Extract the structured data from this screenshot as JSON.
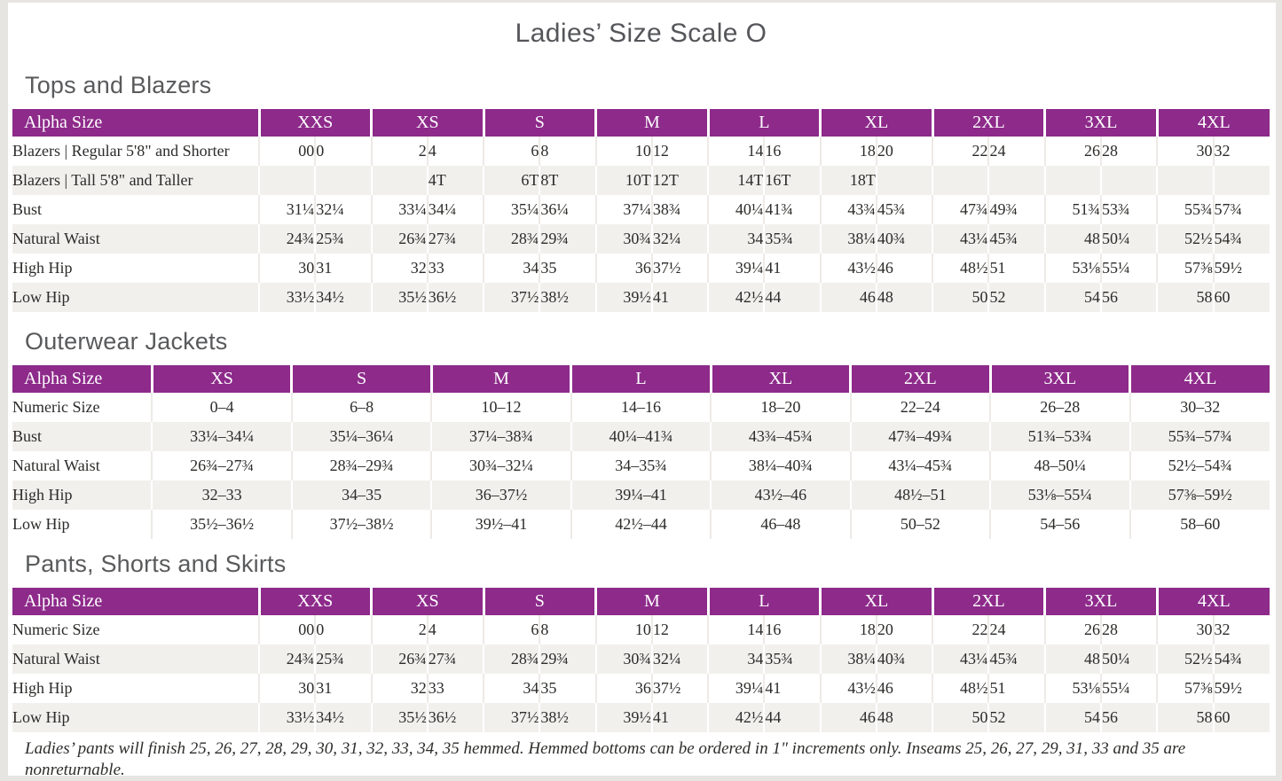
{
  "page": {
    "title": "Ladies’ Size Scale O",
    "footnote": "Ladies’ pants will finish 25, 26, 27, 28, 29, 30, 31, 32, 33, 34, 35 hemmed. Hemmed bottoms can be ordered in 1\" increments only. Inseams 25, 26, 27, 29, 31, 33 and 35 are nonreturnable."
  },
  "colors": {
    "accent_purple": "#8d2a8a",
    "row_stripe": "#f2f0ed"
  },
  "tables": [
    {
      "id": "tops-and-blazers",
      "section": "Tops and Blazers",
      "header_label": "Alpha Size",
      "split": true,
      "sizes": [
        "XXS",
        "XS",
        "S",
        "M",
        "L",
        "XL",
        "2XL",
        "3XL",
        "4XL"
      ],
      "rows": [
        {
          "label": "Blazers | Regular 5'8\" and Shorter",
          "values": [
            "00",
            "0",
            "2",
            "4",
            "6",
            "8",
            "10",
            "12",
            "14",
            "16",
            "18",
            "20",
            "22",
            "24",
            "26",
            "28",
            "30",
            "32"
          ]
        },
        {
          "label": "Blazers | Tall 5'8\" and Taller",
          "values": [
            "",
            "",
            "",
            "4T",
            "6T",
            "8T",
            "10T",
            "12T",
            "14T",
            "16T",
            "18T",
            "",
            "",
            "",
            "",
            "",
            "",
            ""
          ]
        },
        {
          "label": "Bust",
          "values": [
            "31¼",
            "32¼",
            "33¼",
            "34¼",
            "35¼",
            "36¼",
            "37¼",
            "38¾",
            "40¼",
            "41¾",
            "43¾",
            "45¾",
            "47¾",
            "49¾",
            "51¾",
            "53¾",
            "55¾",
            "57¾"
          ]
        },
        {
          "label": "Natural Waist",
          "values": [
            "24¾",
            "25¾",
            "26¾",
            "27¾",
            "28¾",
            "29¾",
            "30¾",
            "32¼",
            "34",
            "35¾",
            "38¼",
            "40¾",
            "43¼",
            "45¾",
            "48",
            "50¼",
            "52½",
            "54¾"
          ]
        },
        {
          "label": "High Hip",
          "values": [
            "30",
            "31",
            "32",
            "33",
            "34",
            "35",
            "36",
            "37½",
            "39¼",
            "41",
            "43½",
            "46",
            "48½",
            "51",
            "53⅛",
            "55¼",
            "57⅜",
            "59½"
          ]
        },
        {
          "label": "Low Hip",
          "values": [
            "33½",
            "34½",
            "35½",
            "36½",
            "37½",
            "38½",
            "39½",
            "41",
            "42½",
            "44",
            "46",
            "48",
            "50",
            "52",
            "54",
            "56",
            "58",
            "60"
          ]
        }
      ]
    },
    {
      "id": "outerwear-jackets",
      "section": "Outerwear Jackets",
      "header_label": "Alpha Size",
      "split": false,
      "sizes": [
        "XS",
        "S",
        "M",
        "L",
        "XL",
        "2XL",
        "3XL",
        "4XL"
      ],
      "rows": [
        {
          "label": "Numeric Size",
          "values": [
            "0–4",
            "6–8",
            "10–12",
            "14–16",
            "18–20",
            "22–24",
            "26–28",
            "30–32"
          ]
        },
        {
          "label": "Bust",
          "values": [
            "33¼–34¼",
            "35¼–36¼",
            "37¼–38¾",
            "40¼–41¾",
            "43¾–45¾",
            "47¾–49¾",
            "51¾–53¾",
            "55¾–57¾"
          ]
        },
        {
          "label": "Natural Waist",
          "values": [
            "26¾–27¾",
            "28¾–29¾",
            "30¾–32¼",
            "34–35¾",
            "38¼–40¾",
            "43¼–45¾",
            "48–50¼",
            "52½–54¾"
          ]
        },
        {
          "label": "High Hip",
          "values": [
            "32–33",
            "34–35",
            "36–37½",
            "39¼–41",
            "43½–46",
            "48½–51",
            "53⅛–55¼",
            "57⅜–59½"
          ]
        },
        {
          "label": "Low Hip",
          "values": [
            "35½–36½",
            "37½–38½",
            "39½–41",
            "42½–44",
            "46–48",
            "50–52",
            "54–56",
            "58–60"
          ]
        }
      ]
    },
    {
      "id": "pants-shorts-and-skirts",
      "section": "Pants, Shorts and Skirts",
      "header_label": "Alpha Size",
      "split": true,
      "sizes": [
        "XXS",
        "XS",
        "S",
        "M",
        "L",
        "XL",
        "2XL",
        "3XL",
        "4XL"
      ],
      "rows": [
        {
          "label": "Numeric Size",
          "values": [
            "00",
            "0",
            "2",
            "4",
            "6",
            "8",
            "10",
            "12",
            "14",
            "16",
            "18",
            "20",
            "22",
            "24",
            "26",
            "28",
            "30",
            "32"
          ]
        },
        {
          "label": "Natural Waist",
          "values": [
            "24¾",
            "25¾",
            "26¾",
            "27¾",
            "28¾",
            "29¾",
            "30¾",
            "32¼",
            "34",
            "35¾",
            "38¼",
            "40¾",
            "43¼",
            "45¾",
            "48",
            "50¼",
            "52½",
            "54¾"
          ]
        },
        {
          "label": "High Hip",
          "values": [
            "30",
            "31",
            "32",
            "33",
            "34",
            "35",
            "36",
            "37½",
            "39¼",
            "41",
            "43½",
            "46",
            "48½",
            "51",
            "53⅛",
            "55¼",
            "57⅜",
            "59½"
          ]
        },
        {
          "label": "Low Hip",
          "values": [
            "33½",
            "34½",
            "35½",
            "36½",
            "37½",
            "38½",
            "39½",
            "41",
            "42½",
            "44",
            "46",
            "48",
            "50",
            "52",
            "54",
            "56",
            "58",
            "60"
          ]
        }
      ]
    }
  ]
}
